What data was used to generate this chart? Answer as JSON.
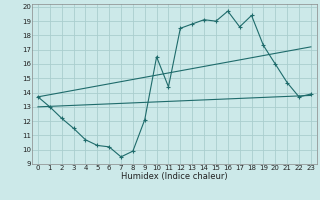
{
  "xlabel": "Humidex (Indice chaleur)",
  "background_color": "#cce9e9",
  "grid_color": "#aacece",
  "line_color": "#1e6b6b",
  "xlim": [
    -0.5,
    23.5
  ],
  "ylim": [
    9,
    20.2
  ],
  "xticks": [
    0,
    1,
    2,
    3,
    4,
    5,
    6,
    7,
    8,
    9,
    10,
    11,
    12,
    13,
    14,
    15,
    16,
    17,
    18,
    19,
    20,
    21,
    22,
    23
  ],
  "yticks": [
    9,
    10,
    11,
    12,
    13,
    14,
    15,
    16,
    17,
    18,
    19,
    20
  ],
  "line1_x": [
    0,
    1,
    2,
    3,
    4,
    5,
    6,
    7,
    8,
    9,
    10,
    11,
    12,
    13,
    14,
    15,
    16,
    17,
    18,
    19,
    20,
    21,
    22,
    23
  ],
  "line1_y": [
    13.7,
    13.0,
    12.2,
    11.5,
    10.7,
    10.3,
    10.2,
    9.5,
    9.9,
    12.1,
    16.5,
    14.4,
    18.5,
    18.8,
    19.1,
    19.0,
    19.7,
    18.6,
    19.4,
    17.3,
    16.0,
    14.7,
    13.7,
    13.9
  ],
  "line2_x": [
    0,
    23
  ],
  "line2_y": [
    13.7,
    17.2
  ],
  "line3_x": [
    0,
    23
  ],
  "line3_y": [
    13.0,
    13.8
  ]
}
